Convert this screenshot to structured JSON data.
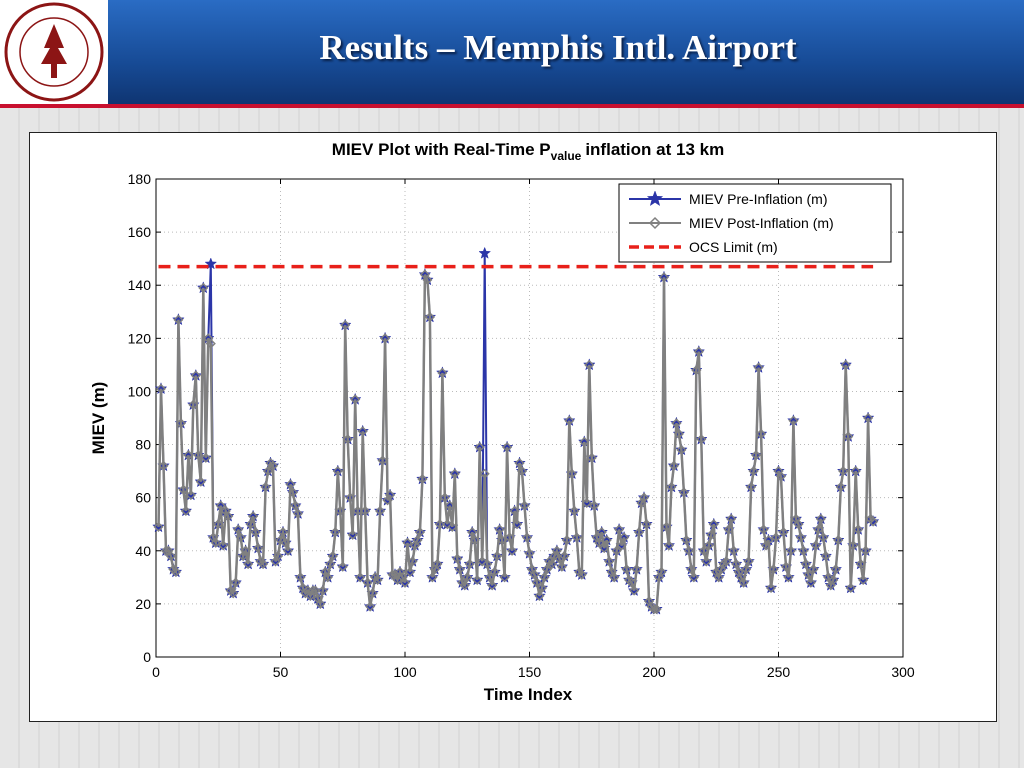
{
  "header": {
    "title": "Results – Memphis Intl. Airport"
  },
  "chart_data": {
    "type": "line",
    "title": "MIEV Plot with Real-Time P",
    "title_subscript": "value",
    "title_suffix": "inflation at 13 km",
    "xlabel": "Time Index",
    "ylabel": "MIEV (m)",
    "xlim": [
      0,
      300
    ],
    "xticks": [
      0,
      50,
      100,
      150,
      200,
      250,
      300
    ],
    "ylim": [
      0,
      180
    ],
    "yticks": [
      0,
      20,
      40,
      60,
      80,
      100,
      120,
      140,
      160,
      180
    ],
    "grid": true,
    "legend": "upper right",
    "x": [
      1,
      2,
      3,
      4,
      5,
      6,
      7,
      8,
      9,
      10,
      11,
      12,
      13,
      14,
      15,
      16,
      17,
      18,
      19,
      20,
      21,
      22,
      23,
      24,
      25,
      26,
      27,
      28,
      29,
      30,
      31,
      32,
      33,
      34,
      35,
      36,
      37,
      38,
      39,
      40,
      41,
      42,
      43,
      44,
      45,
      46,
      47,
      48,
      49,
      50,
      51,
      52,
      53,
      54,
      55,
      56,
      57,
      58,
      59,
      60,
      61,
      62,
      63,
      64,
      65,
      66,
      67,
      68,
      69,
      70,
      71,
      72,
      73,
      74,
      75,
      76,
      77,
      78,
      79,
      80,
      81,
      82,
      83,
      84,
      85,
      86,
      87,
      88,
      89,
      90,
      91,
      92,
      93,
      94,
      95,
      96,
      97,
      98,
      99,
      100,
      101,
      102,
      103,
      104,
      105,
      106,
      107,
      108,
      109,
      110,
      111,
      112,
      113,
      114,
      115,
      116,
      117,
      118,
      119,
      120,
      121,
      122,
      123,
      124,
      125,
      126,
      127,
      128,
      129,
      130,
      131,
      132,
      133,
      134,
      135,
      136,
      137,
      138,
      139,
      140,
      141,
      142,
      143,
      144,
      145,
      146,
      147,
      148,
      149,
      150,
      151,
      152,
      153,
      154,
      155,
      156,
      157,
      158,
      159,
      160,
      161,
      162,
      163,
      164,
      165,
      166,
      167,
      168,
      169,
      170,
      171,
      172,
      173,
      174,
      175,
      176,
      177,
      178,
      179,
      180,
      181,
      182,
      183,
      184,
      185,
      186,
      187,
      188,
      189,
      190,
      191,
      192,
      193,
      194,
      195,
      196,
      197,
      198,
      199,
      200,
      201,
      202,
      203,
      204,
      205,
      206,
      207,
      208,
      209,
      210,
      211,
      212,
      213,
      214,
      215,
      216,
      217,
      218,
      219,
      220,
      221,
      222,
      223,
      224,
      225,
      226,
      227,
      228,
      229,
      230,
      231,
      232,
      233,
      234,
      235,
      236,
      237,
      238,
      239,
      240,
      241,
      242,
      243,
      244,
      245,
      246,
      247,
      248,
      249,
      250,
      251,
      252,
      253,
      254,
      255,
      256,
      257,
      258,
      259,
      260,
      261,
      262,
      263,
      264,
      265,
      266,
      267,
      268,
      269,
      270,
      271,
      272,
      273,
      274,
      275,
      276,
      277,
      278,
      279,
      280,
      281,
      282,
      283,
      284,
      285,
      286,
      287,
      288
    ],
    "series": [
      {
        "name": "MIEV Pre-Inflation (m)",
        "color": "#2b35a8",
        "marker": "star",
        "values": [
          49,
          101,
          72,
          40,
          40,
          38,
          33,
          32,
          127,
          88,
          63,
          55,
          76,
          61,
          95,
          106,
          76,
          66,
          139,
          75,
          120,
          148,
          45,
          43,
          50,
          57,
          42,
          55,
          53,
          25,
          24,
          28,
          48,
          45,
          38,
          40,
          35,
          50,
          53,
          47,
          41,
          36,
          35,
          64,
          70,
          73,
          72,
          36,
          38,
          44,
          47,
          43,
          40,
          65,
          62,
          57,
          54,
          30,
          26,
          24,
          25,
          23,
          25,
          25,
          22,
          20,
          25,
          32,
          30,
          35,
          38,
          47,
          70,
          55,
          34,
          125,
          82,
          60,
          46,
          97,
          55,
          30,
          85,
          55,
          28,
          19,
          24,
          30,
          29,
          55,
          74,
          120,
          59,
          61,
          31,
          31,
          29,
          32,
          30,
          28,
          43,
          32,
          36,
          42,
          44,
          47,
          67,
          144,
          142,
          128,
          30,
          33,
          35,
          50,
          107,
          60,
          50,
          57,
          49,
          69,
          37,
          33,
          28,
          27,
          30,
          35,
          47,
          44,
          29,
          79,
          36,
          152,
          35,
          30,
          27,
          32,
          38,
          48,
          44,
          30,
          79,
          45,
          40,
          55,
          50,
          73,
          70,
          57,
          45,
          39,
          33,
          31,
          28,
          23,
          26,
          30,
          33,
          36,
          35,
          38,
          40,
          37,
          34,
          38,
          44,
          89,
          69,
          55,
          45,
          32,
          31,
          81,
          58,
          110,
          75,
          57,
          45,
          43,
          47,
          41,
          44,
          36,
          32,
          30,
          40,
          48,
          42,
          45,
          33,
          29,
          28,
          25,
          33,
          47,
          58,
          60,
          50,
          21,
          19,
          18,
          18,
          30,
          32,
          143,
          49,
          42,
          64,
          72,
          88,
          84,
          78,
          62,
          44,
          40,
          33,
          30,
          108,
          115,
          82,
          40,
          36,
          42,
          46,
          50,
          32,
          30,
          33,
          35,
          36,
          48,
          52,
          40,
          35,
          32,
          30,
          28,
          33,
          36,
          64,
          70,
          76,
          109,
          84,
          48,
          42,
          44,
          26,
          33,
          45,
          70,
          68,
          47,
          34,
          30,
          40,
          89,
          52,
          50,
          45,
          40,
          35,
          31,
          28,
          33,
          42,
          48,
          52,
          45,
          38,
          30,
          27,
          29,
          33,
          44,
          64,
          70,
          110,
          83,
          26,
          42,
          70,
          48,
          35,
          29,
          40,
          90,
          52,
          51
        ]
      },
      {
        "name": "MIEV Post-Inflation (m)",
        "color": "#808080",
        "marker": "diamond",
        "values": [
          49,
          101,
          72,
          40,
          40,
          38,
          33,
          32,
          127,
          88,
          63,
          55,
          76,
          61,
          95,
          106,
          76,
          66,
          139,
          75,
          120,
          118,
          45,
          43,
          50,
          57,
          42,
          55,
          53,
          25,
          24,
          28,
          48,
          45,
          38,
          40,
          35,
          50,
          53,
          47,
          41,
          36,
          35,
          64,
          70,
          73,
          72,
          36,
          38,
          44,
          47,
          43,
          40,
          65,
          62,
          57,
          54,
          30,
          26,
          24,
          25,
          23,
          25,
          25,
          22,
          20,
          25,
          32,
          30,
          35,
          38,
          47,
          70,
          55,
          34,
          125,
          82,
          60,
          46,
          97,
          55,
          30,
          85,
          55,
          28,
          19,
          24,
          30,
          29,
          55,
          74,
          120,
          59,
          61,
          31,
          31,
          29,
          32,
          30,
          28,
          43,
          32,
          36,
          42,
          44,
          47,
          67,
          144,
          142,
          128,
          30,
          33,
          35,
          50,
          107,
          60,
          50,
          57,
          49,
          69,
          37,
          33,
          28,
          27,
          30,
          35,
          47,
          44,
          29,
          79,
          36,
          69,
          35,
          30,
          27,
          32,
          38,
          48,
          44,
          30,
          79,
          45,
          40,
          55,
          50,
          73,
          70,
          57,
          45,
          39,
          33,
          31,
          28,
          23,
          26,
          30,
          33,
          36,
          35,
          38,
          40,
          37,
          34,
          38,
          44,
          89,
          69,
          55,
          45,
          32,
          31,
          81,
          58,
          110,
          75,
          57,
          45,
          43,
          47,
          41,
          44,
          36,
          32,
          30,
          40,
          48,
          42,
          45,
          33,
          29,
          28,
          25,
          33,
          47,
          58,
          60,
          50,
          21,
          19,
          18,
          18,
          30,
          32,
          143,
          49,
          42,
          64,
          72,
          88,
          84,
          78,
          62,
          44,
          40,
          33,
          30,
          108,
          115,
          82,
          40,
          36,
          42,
          46,
          50,
          32,
          30,
          33,
          35,
          36,
          48,
          52,
          40,
          35,
          32,
          30,
          28,
          33,
          36,
          64,
          70,
          76,
          109,
          84,
          48,
          42,
          44,
          26,
          33,
          45,
          70,
          68,
          47,
          34,
          30,
          40,
          89,
          52,
          50,
          45,
          40,
          35,
          31,
          28,
          33,
          42,
          48,
          52,
          45,
          38,
          30,
          27,
          29,
          33,
          44,
          64,
          70,
          110,
          83,
          26,
          42,
          70,
          48,
          35,
          29,
          40,
          90,
          52,
          51
        ]
      },
      {
        "name": "OCS Limit (m)",
        "color": "#e8201a",
        "dashed": true,
        "x": [
          1,
          288
        ],
        "values": [
          147,
          147
        ]
      }
    ]
  }
}
